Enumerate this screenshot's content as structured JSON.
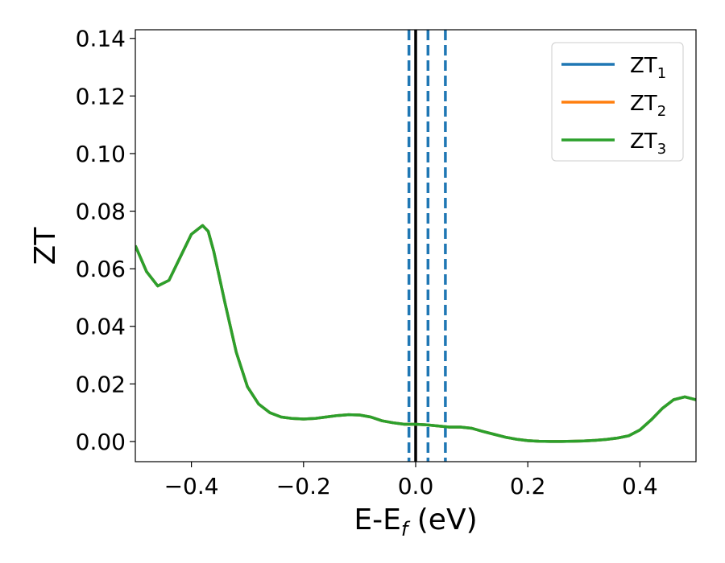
{
  "chart_data": {
    "type": "line",
    "title": "",
    "xlabel": "E-E",
    "xlabel_sub": "f",
    "xlabel_unit": " (eV)",
    "ylabel": "ZT",
    "xlim": [
      -0.5,
      0.5
    ],
    "ylim": [
      -0.007,
      0.143
    ],
    "grid": false,
    "legend_position": "top-right",
    "x_ticks": [
      -0.4,
      -0.2,
      0.0,
      0.2,
      0.4
    ],
    "x_tick_labels": [
      "−0.4",
      "−0.2",
      "0.0",
      "0.2",
      "0.4"
    ],
    "y_ticks": [
      0.0,
      0.02,
      0.04,
      0.06,
      0.08,
      0.1,
      0.12,
      0.14
    ],
    "y_tick_labels": [
      "0.00",
      "0.02",
      "0.04",
      "0.06",
      "0.08",
      "0.10",
      "0.12",
      "0.14"
    ],
    "x": [
      -0.5,
      -0.48,
      -0.46,
      -0.44,
      -0.42,
      -0.4,
      -0.38,
      -0.37,
      -0.36,
      -0.34,
      -0.32,
      -0.3,
      -0.28,
      -0.26,
      -0.24,
      -0.22,
      -0.2,
      -0.18,
      -0.16,
      -0.14,
      -0.12,
      -0.1,
      -0.08,
      -0.06,
      -0.04,
      -0.02,
      0.0,
      0.02,
      0.04,
      0.06,
      0.08,
      0.1,
      0.12,
      0.14,
      0.16,
      0.18,
      0.2,
      0.22,
      0.24,
      0.26,
      0.28,
      0.3,
      0.32,
      0.34,
      0.36,
      0.38,
      0.4,
      0.42,
      0.44,
      0.46,
      0.48,
      0.5
    ],
    "series": [
      {
        "name": "ZT",
        "sub": "1",
        "color": "#1f77b4",
        "values": [
          0.068,
          0.059,
          0.054,
          0.056,
          0.064,
          0.072,
          0.075,
          0.073,
          0.066,
          0.048,
          0.031,
          0.019,
          0.013,
          0.01,
          0.0085,
          0.008,
          0.0078,
          0.008,
          0.0085,
          0.009,
          0.0093,
          0.0092,
          0.0085,
          0.0072,
          0.0065,
          0.006,
          0.006,
          0.0058,
          0.0054,
          0.005,
          0.005,
          0.0046,
          0.0035,
          0.0025,
          0.0015,
          0.0008,
          0.0003,
          0.0001,
          0.0,
          0.0,
          0.0001,
          0.0002,
          0.0004,
          0.0007,
          0.0012,
          0.002,
          0.004,
          0.0075,
          0.0115,
          0.0145,
          0.0155,
          0.0145
        ]
      },
      {
        "name": "ZT",
        "sub": "2",
        "color": "#ff7f0e",
        "values": [
          0.068,
          0.059,
          0.054,
          0.056,
          0.064,
          0.072,
          0.075,
          0.073,
          0.066,
          0.048,
          0.031,
          0.019,
          0.013,
          0.01,
          0.0085,
          0.008,
          0.0078,
          0.008,
          0.0085,
          0.009,
          0.0093,
          0.0092,
          0.0085,
          0.0072,
          0.0065,
          0.006,
          0.006,
          0.0058,
          0.0054,
          0.005,
          0.005,
          0.0046,
          0.0035,
          0.0025,
          0.0015,
          0.0008,
          0.0003,
          0.0001,
          0.0,
          0.0,
          0.0001,
          0.0002,
          0.0004,
          0.0007,
          0.0012,
          0.002,
          0.004,
          0.0075,
          0.0115,
          0.0145,
          0.0155,
          0.0145
        ]
      },
      {
        "name": "ZT",
        "sub": "3",
        "color": "#2ca02c",
        "values": [
          0.068,
          0.059,
          0.054,
          0.056,
          0.064,
          0.072,
          0.075,
          0.073,
          0.066,
          0.048,
          0.031,
          0.019,
          0.013,
          0.01,
          0.0085,
          0.008,
          0.0078,
          0.008,
          0.0085,
          0.009,
          0.0093,
          0.0092,
          0.0085,
          0.0072,
          0.0065,
          0.006,
          0.006,
          0.0058,
          0.0054,
          0.005,
          0.005,
          0.0046,
          0.0035,
          0.0025,
          0.0015,
          0.0008,
          0.0003,
          0.0001,
          0.0,
          0.0,
          0.0001,
          0.0002,
          0.0004,
          0.0007,
          0.0012,
          0.002,
          0.004,
          0.0075,
          0.0115,
          0.0145,
          0.0155,
          0.0145
        ]
      }
    ],
    "vertical_lines": [
      {
        "x": -0.012,
        "style": "dashed",
        "color": "#1f77b4"
      },
      {
        "x": 0.0,
        "style": "solid",
        "color": "#000000"
      },
      {
        "x": 0.022,
        "style": "dashed",
        "color": "#1f77b4"
      },
      {
        "x": 0.053,
        "style": "dashed",
        "color": "#1f77b4"
      }
    ]
  }
}
